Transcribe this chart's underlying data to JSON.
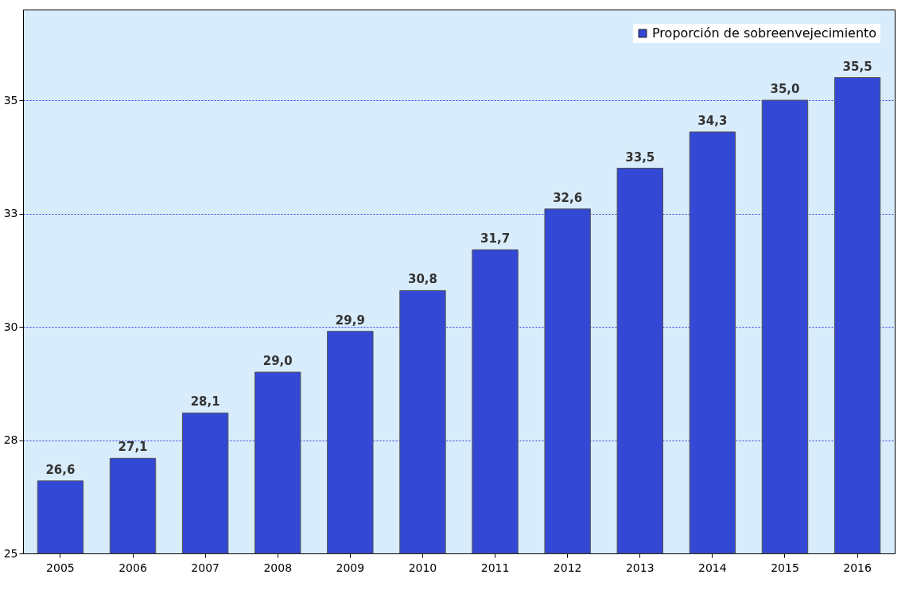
{
  "chart_data": {
    "type": "bar",
    "categories": [
      "2005",
      "2006",
      "2007",
      "2008",
      "2009",
      "2010",
      "2011",
      "2012",
      "2013",
      "2014",
      "2015",
      "2016"
    ],
    "series": [
      {
        "name": "Proporción de sobreenvejecimiento",
        "color": "#3348d4",
        "values": [
          26.6,
          27.1,
          28.1,
          29.0,
          29.9,
          30.8,
          31.7,
          32.6,
          33.5,
          34.3,
          35.0,
          35.5
        ],
        "value_labels": [
          "26,6",
          "27,1",
          "28,1",
          "29,0",
          "29,9",
          "30,8",
          "31,7",
          "32,6",
          "33,5",
          "34,3",
          "35,0",
          "35,5"
        ]
      }
    ],
    "ylim": [
      25,
      37
    ],
    "yticks": [
      25,
      {
        "value": 27.5,
        "label": "28"
      },
      30,
      {
        "value": 32.5,
        "label": "33"
      },
      35
    ],
    "grid": "y",
    "legend": "top right"
  }
}
